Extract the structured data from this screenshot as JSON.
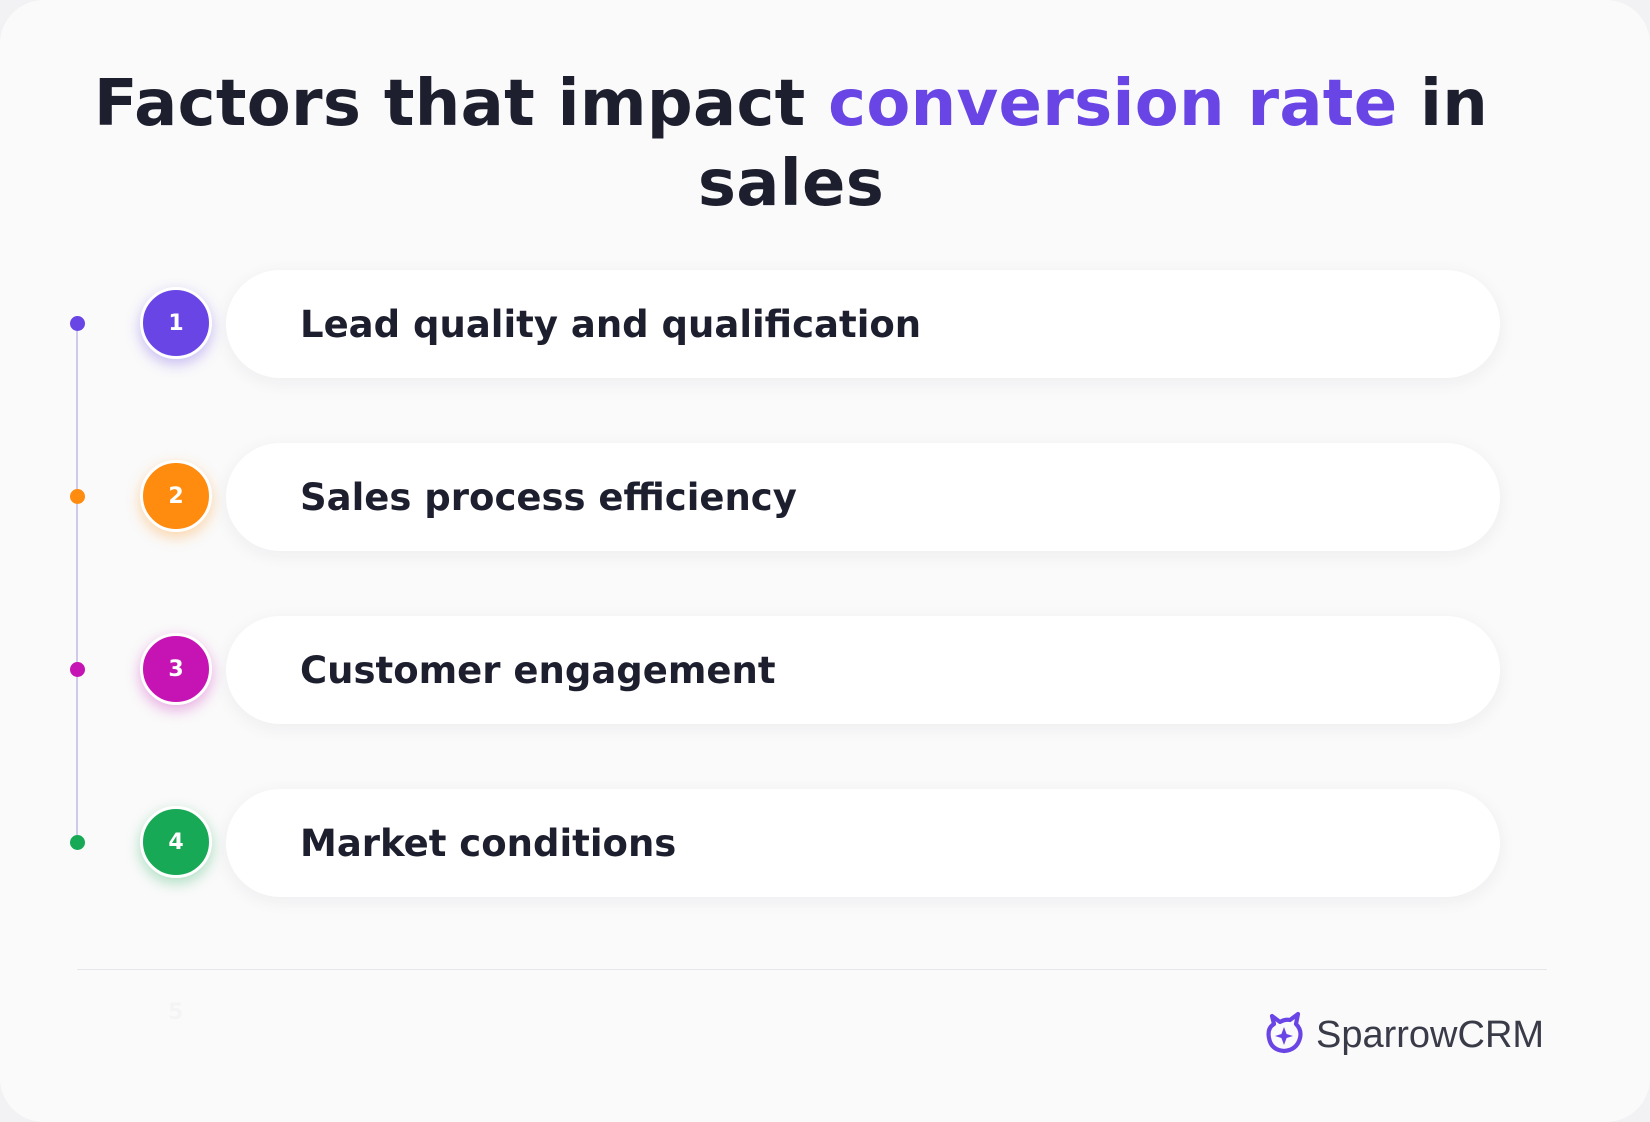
{
  "title": {
    "part1": "Factors that impact ",
    "accent": "conversion rate",
    "part2": " in sales"
  },
  "factors": [
    {
      "number": "1",
      "label": "Lead quality and qualification",
      "color": "#6a45e6"
    },
    {
      "number": "2",
      "label": "Sales process efficiency",
      "color": "#ff8c0f"
    },
    {
      "number": "3",
      "label": "Customer engagement",
      "color": "#c614b4"
    },
    {
      "number": "4",
      "label": "Market conditions",
      "color": "#18a956"
    }
  ],
  "faint_number": "5",
  "brand": {
    "name": "SparrowCRM",
    "color": "#6a45e6"
  }
}
